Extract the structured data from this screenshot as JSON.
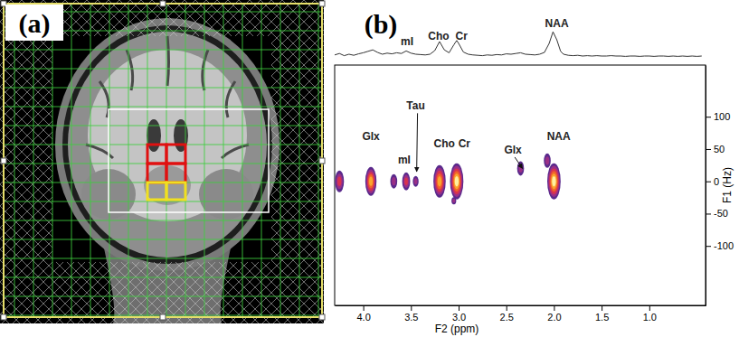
{
  "panel_labels": [
    "(a)",
    "(b)"
  ],
  "chart_data": [
    {
      "type": "line",
      "x": [
        4.3,
        4.25,
        4.2,
        4.15,
        4.1,
        4.05,
        4.0,
        3.95,
        3.9,
        3.85,
        3.8,
        3.75,
        3.7,
        3.65,
        3.6,
        3.55,
        3.5,
        3.45,
        3.4,
        3.35,
        3.3,
        3.25,
        3.2,
        3.15,
        3.1,
        3.05,
        3.02,
        3.0,
        2.95,
        2.9,
        2.85,
        2.8,
        2.75,
        2.7,
        2.65,
        2.6,
        2.55,
        2.5,
        2.45,
        2.4,
        2.35,
        2.3,
        2.25,
        2.2,
        2.15,
        2.1,
        2.05,
        2.01,
        1.97,
        1.93,
        1.9,
        1.85,
        1.8,
        1.75,
        1.7,
        1.65,
        1.6,
        1.55,
        1.5,
        1.45,
        1.4,
        1.35,
        1.3,
        1.25,
        1.2,
        1.15,
        1.1,
        1.05,
        1.0,
        0.95,
        0.9,
        0.85,
        0.8,
        0.75,
        0.7,
        0.65,
        0.6,
        0.55,
        0.5,
        0.45
      ],
      "values": [
        1.8,
        2.2,
        1.6,
        2.0,
        1.7,
        2.1,
        2.4,
        2.8,
        3.2,
        2.5,
        2.0,
        2.3,
        2.1,
        2.4,
        2.2,
        2.9,
        2.3,
        2.0,
        1.9,
        1.8,
        2.0,
        3.0,
        5.5,
        3.2,
        2.4,
        4.6,
        5.8,
        5.0,
        2.6,
        2.0,
        1.8,
        1.7,
        1.6,
        1.8,
        1.7,
        1.9,
        1.8,
        2.1,
        2.0,
        2.2,
        2.4,
        2.0,
        1.9,
        1.8,
        2.0,
        2.5,
        5.0,
        8.2,
        6.0,
        2.8,
        2.0,
        1.7,
        1.6,
        1.7,
        1.5,
        1.6,
        1.5,
        1.6,
        1.5,
        1.5,
        1.6,
        1.5,
        1.5,
        1.4,
        1.5,
        1.5,
        1.4,
        1.5,
        1.5,
        1.4,
        1.5,
        1.5,
        1.4,
        1.5,
        1.4,
        1.5,
        1.4,
        1.5,
        1.4,
        1.5
      ],
      "color": "#333333",
      "xlim": [
        4.3,
        0.41
      ],
      "ylim": [
        0,
        10
      ],
      "tick_labels": false,
      "annotations": [
        {
          "text": "mI",
          "x": 3.54,
          "y": 4.5
        },
        {
          "text": "Cho",
          "x": 3.21,
          "y": 6.0
        },
        {
          "text": "Cr",
          "x": 2.97,
          "y": 6.0
        },
        {
          "text": "NAA",
          "x": 1.97,
          "y": 9.5
        }
      ]
    },
    {
      "type": "contour",
      "x_label": "F2 (ppm)",
      "y_label": "F1 (Hz)",
      "xlim": [
        4.3,
        0.41
      ],
      "ylim": [
        -192,
        180
      ],
      "xticks": [
        {
          "value": 4,
          "label": "4.0"
        },
        {
          "value": 3.5,
          "label": "3.5"
        },
        {
          "value": 3,
          "label": "3.0"
        },
        {
          "value": 2.5,
          "label": "2.5"
        },
        {
          "value": 2,
          "label": "2.0"
        },
        {
          "value": 1.5,
          "label": "1.5"
        },
        {
          "value": 1,
          "label": "1.0"
        }
      ],
      "yticks": [
        -100,
        -50,
        0,
        50,
        100
      ],
      "peaks": [
        {
          "f2": 4.25,
          "f1": 0,
          "intensity": 5
        },
        {
          "f2": 3.92,
          "f1": 0,
          "intensity": 7
        },
        {
          "f2": 3.68,
          "f1": 0,
          "intensity": 3
        },
        {
          "f2": 3.55,
          "f1": 0,
          "intensity": 4
        },
        {
          "f2": 3.45,
          "f1": 0,
          "intensity": 2
        },
        {
          "f2": 3.2,
          "f1": 0,
          "intensity": 8
        },
        {
          "f2": 3.02,
          "f1": 0,
          "intensity": 9
        },
        {
          "f2": 2.35,
          "f1": 20,
          "intensity": 3
        },
        {
          "f2": 2.07,
          "f1": 32,
          "intensity": 3
        },
        {
          "f2": 2.0,
          "f1": 0,
          "intensity": 9
        },
        {
          "f2": 3.05,
          "f1": -30,
          "intensity": 1
        }
      ],
      "annotations": [
        {
          "text": "Glx",
          "x": 3.92,
          "y": 64
        },
        {
          "text": "mI",
          "x": 3.57,
          "y": 27
        },
        {
          "text": "Tau",
          "x": 3.45,
          "y": 111,
          "xy": [
            3.44,
            15
          ]
        },
        {
          "text": "Cho",
          "x": 3.15,
          "y": 53
        },
        {
          "text": "Cr",
          "x": 2.94,
          "y": 53
        },
        {
          "text": "Glx",
          "x": 2.43,
          "y": 43,
          "xy": [
            2.33,
            20
          ]
        },
        {
          "text": "NAA",
          "x": 1.95,
          "y": 64
        }
      ]
    }
  ]
}
